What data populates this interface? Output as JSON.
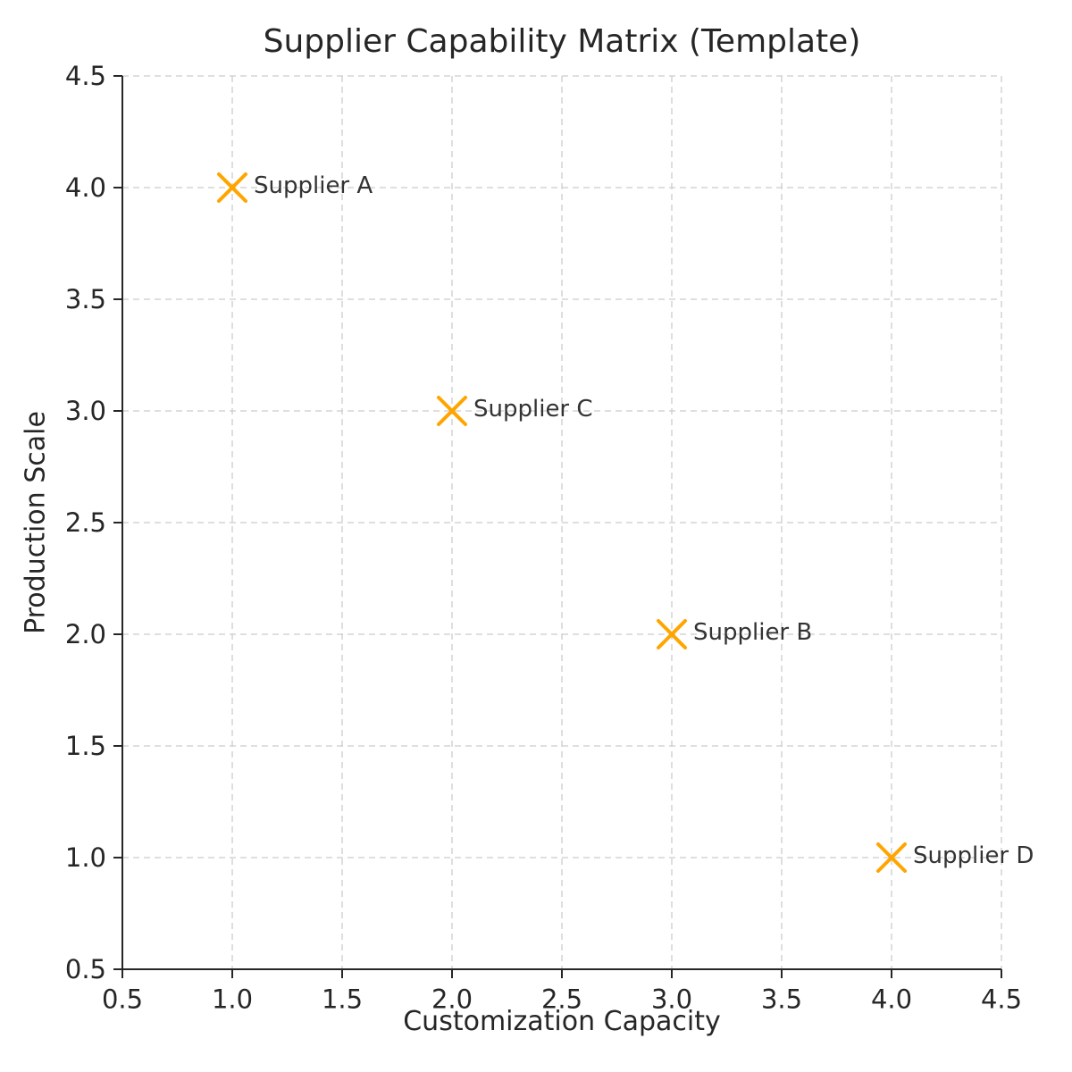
{
  "chart_data": {
    "type": "scatter",
    "title": "Supplier Capability Matrix (Template)",
    "xlabel": "Customization Capacity",
    "ylabel": "Production Scale",
    "xlim": [
      0.5,
      4.5
    ],
    "ylim": [
      0.5,
      4.5
    ],
    "xticks": [
      0.5,
      1.0,
      1.5,
      2.0,
      2.5,
      3.0,
      3.5,
      4.0,
      4.5
    ],
    "yticks": [
      0.5,
      1.0,
      1.5,
      2.0,
      2.5,
      3.0,
      3.5,
      4.0,
      4.5
    ],
    "grid": true,
    "legend": "none",
    "marker": "x",
    "colors": {
      "marker": "#FFA500",
      "point_label": "#333333",
      "axis_text": "#262626",
      "spine": "#262626",
      "grid": "#cccccc",
      "background": "#ffffff"
    },
    "points": [
      {
        "label": "Supplier A",
        "x": 1,
        "y": 4
      },
      {
        "label": "Supplier C",
        "x": 2,
        "y": 3
      },
      {
        "label": "Supplier B",
        "x": 3,
        "y": 2
      },
      {
        "label": "Supplier D",
        "x": 4,
        "y": 1
      }
    ]
  }
}
